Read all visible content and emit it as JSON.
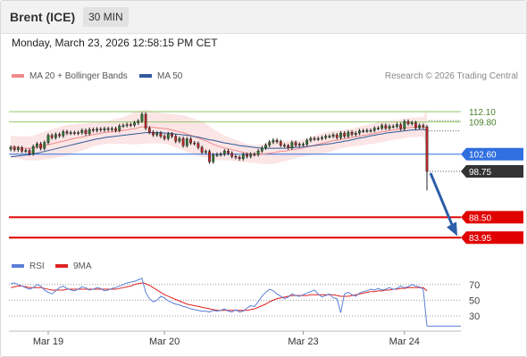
{
  "header": {
    "title": "Brent (ICE)",
    "timeframe": "30 MIN"
  },
  "datetime": "Monday, March 23, 2026 12:58:15 PM CET",
  "legend": {
    "ma20_label": "MA 20 + Bollinger Bands",
    "ma20_color": "#f08a8a",
    "ma50_label": "MA 50",
    "ma50_color": "#2e5a9a"
  },
  "research": "Research © 2026 Trading Central",
  "rsi_legend": {
    "rsi_label": "RSI",
    "rsi_color": "#5a7fd6",
    "ma9_label": "9MA",
    "ma9_color": "#e02020"
  },
  "chart_data": {
    "type": "candlestick",
    "x_labels": [
      "Mar 19",
      "Mar 20",
      "Mar 23",
      "Mar 24"
    ],
    "price_range": [
      80.8,
      117.5
    ],
    "levels": [
      {
        "label": "112.10",
        "value": 112.1,
        "color": "#8fc96a",
        "style": "resistance"
      },
      {
        "label": "109.80",
        "value": 109.8,
        "color": "#8fc96a",
        "style": "resistance"
      },
      {
        "label": "102.60",
        "value": 102.6,
        "color": "#2f6fe0",
        "style": "pivot"
      },
      {
        "label": "98.75",
        "value": 98.75,
        "color": "#333333",
        "style": "last-price"
      },
      {
        "label": "88.50",
        "value": 88.5,
        "color": "#e00000",
        "style": "target"
      },
      {
        "label": "83.95",
        "value": 83.95,
        "color": "#e00000",
        "style": "target"
      }
    ],
    "forecast_arrow": {
      "from": 98.75,
      "to": 84.3,
      "color": "#2d5ea8"
    },
    "price_close": [
      104.1,
      103.6,
      104.0,
      103.3,
      103.4,
      102.7,
      104.3,
      104.9,
      103.9,
      105.2,
      106.8,
      106.3,
      107.0,
      106.7,
      107.6,
      107.3,
      107.4,
      107.3,
      107.4,
      107.9,
      107.2,
      108.1,
      107.9,
      108.2,
      108.0,
      108.3,
      108.1,
      108.3,
      107.9,
      108.9,
      109.0,
      109.2,
      109.1,
      109.6,
      110.0,
      111.5,
      108.4,
      107.5,
      106.9,
      107.3,
      106.6,
      106.1,
      107.1,
      106.6,
      105.5,
      106.1,
      104.5,
      106.0,
      105.1,
      105.0,
      104.1,
      103.0,
      103.2,
      100.9,
      102.4,
      102.5,
      102.6,
      103.3,
      102.8,
      102.1,
      101.9,
      101.6,
      102.5,
      102.1,
      102.6,
      102.5,
      103.3,
      104.0,
      104.6,
      105.3,
      105.7,
      105.4,
      104.6,
      104.5,
      104.0,
      105.2,
      104.6,
      104.8,
      104.8,
      105.7,
      106.1,
      106.0,
      106.1,
      106.3,
      106.6,
      106.6,
      106.9,
      106.3,
      107.3,
      106.6,
      107.5,
      107.0,
      107.3,
      107.8,
      107.8,
      107.9,
      107.9,
      108.4,
      108.4,
      109.0,
      108.4,
      108.8,
      108.8,
      109.2,
      108.3,
      109.9,
      109.4,
      109.6,
      108.5,
      109.0,
      108.7,
      98.75
    ],
    "price_open": [
      103.7,
      104.1,
      103.6,
      104.0,
      103.3,
      103.4,
      102.7,
      104.3,
      104.9,
      103.9,
      105.2,
      106.8,
      106.3,
      107.0,
      106.7,
      107.6,
      107.3,
      107.4,
      107.3,
      107.4,
      107.9,
      107.2,
      108.1,
      107.9,
      108.2,
      108.0,
      108.3,
      108.1,
      108.3,
      107.9,
      108.9,
      109.0,
      109.2,
      109.1,
      109.6,
      110.0,
      111.5,
      108.4,
      107.5,
      106.9,
      107.3,
      106.6,
      106.1,
      107.1,
      106.6,
      105.5,
      106.1,
      104.5,
      106.0,
      105.1,
      105.0,
      104.1,
      103.0,
      103.2,
      100.9,
      102.4,
      102.5,
      102.6,
      103.3,
      102.8,
      102.1,
      101.9,
      101.6,
      102.5,
      102.1,
      102.6,
      102.5,
      103.3,
      104.0,
      104.6,
      105.3,
      105.7,
      105.4,
      104.6,
      104.5,
      104.0,
      105.2,
      104.6,
      104.8,
      104.8,
      105.7,
      106.1,
      106.0,
      106.1,
      106.3,
      106.6,
      106.6,
      106.9,
      106.3,
      107.3,
      106.6,
      107.5,
      107.0,
      107.3,
      107.8,
      107.8,
      107.9,
      107.9,
      108.4,
      108.4,
      109.0,
      108.4,
      108.8,
      108.8,
      109.2,
      108.3,
      109.9,
      109.4,
      109.6,
      108.5,
      109.0,
      108.7
    ],
    "ma20": [
      104.3,
      104.2,
      104.1,
      104.0,
      103.9,
      103.9,
      104.0,
      104.1,
      104.3,
      104.5,
      104.7,
      104.9,
      105.1,
      105.3,
      105.5,
      105.7,
      105.9,
      106.1,
      106.3,
      106.4,
      106.6,
      106.8,
      107.0,
      107.1,
      107.3,
      107.4,
      107.5,
      107.6,
      107.7,
      107.8,
      107.9,
      108.0,
      108.2,
      108.3,
      108.5,
      108.7,
      108.7,
      108.7,
      108.6,
      108.5,
      108.4,
      108.3,
      108.2,
      108.0,
      107.8,
      107.6,
      107.4,
      107.1,
      106.8,
      106.5,
      106.2,
      105.9,
      105.6,
      105.2,
      104.8,
      104.5,
      104.2,
      104.0,
      103.8,
      103.6,
      103.4,
      103.2,
      103.0,
      102.8,
      102.7,
      102.6,
      102.6,
      102.6,
      102.7,
      102.8,
      102.9,
      103.1,
      103.2,
      103.3,
      103.4,
      103.6,
      103.7,
      103.8,
      104.0,
      104.2,
      104.4,
      104.6,
      104.8,
      105.0,
      105.2,
      105.4,
      105.6,
      105.7,
      105.9,
      106.0,
      106.2,
      106.3,
      106.5,
      106.6,
      106.8,
      106.9,
      107.1,
      107.2,
      107.4,
      107.6,
      107.7,
      107.9,
      108.0,
      108.1,
      108.2,
      108.4,
      108.5,
      108.6,
      108.6,
      108.7,
      108.7,
      108.3
    ],
    "ma50": [
      102.0,
      102.1,
      102.2,
      102.3,
      102.4,
      102.5,
      102.7,
      102.8,
      103.0,
      103.2,
      103.4,
      103.6,
      103.8,
      104.0,
      104.2,
      104.4,
      104.6,
      104.8,
      105.0,
      105.2,
      105.4,
      105.6,
      105.8,
      106.0,
      106.1,
      106.3,
      106.4,
      106.5,
      106.6,
      106.7,
      106.8,
      106.9,
      107.0,
      107.1,
      107.2,
      107.3,
      107.4,
      107.4,
      107.4,
      107.4,
      107.4,
      107.3,
      107.3,
      107.2,
      107.1,
      107.0,
      106.9,
      106.8,
      106.7,
      106.5,
      106.4,
      106.2,
      106.0,
      105.8,
      105.7,
      105.5,
      105.3,
      105.1,
      105.0,
      104.8,
      104.7,
      104.5,
      104.4,
      104.3,
      104.2,
      104.1,
      104.0,
      103.9,
      103.9,
      103.9,
      103.9,
      103.9,
      103.9,
      103.9,
      104.0,
      104.0,
      104.1,
      104.1,
      104.2,
      104.3,
      104.4,
      104.5,
      104.6,
      104.7,
      104.8,
      104.9,
      105.0,
      105.2,
      105.3,
      105.5,
      105.6,
      105.8,
      106.0,
      106.2,
      106.3,
      106.5,
      106.7,
      106.8,
      107.0,
      107.1,
      107.3,
      107.4,
      107.5,
      107.6,
      107.7,
      107.8,
      107.9,
      108.0,
      108.0,
      108.1,
      108.1,
      107.9
    ],
    "bb_width": [
      2.4,
      2.4,
      2.5,
      2.6,
      2.6,
      2.7,
      2.8,
      2.9,
      3.0,
      3.1,
      3.2,
      3.3,
      3.3,
      3.4,
      3.4,
      3.4,
      3.3,
      3.2,
      3.1,
      3.0,
      2.9,
      2.8,
      2.7,
      2.6,
      2.6,
      2.6,
      2.6,
      2.7,
      2.8,
      2.9,
      3.0,
      3.2,
      3.4,
      3.6,
      3.7,
      3.8,
      3.8,
      3.7,
      3.6,
      3.5,
      3.4,
      3.4,
      3.5,
      3.6,
      3.7,
      3.8,
      3.9,
      4.0,
      4.0,
      4.0,
      4.0,
      3.9,
      3.8,
      3.6,
      3.4,
      3.2,
      3.0,
      2.8,
      2.6,
      2.5,
      2.4,
      2.3,
      2.2,
      2.1,
      2.0,
      2.0,
      2.1,
      2.2,
      2.3,
      2.4,
      2.5,
      2.5,
      2.4,
      2.3,
      2.2,
      2.1,
      2.0,
      1.9,
      1.9,
      1.9,
      2.0,
      2.1,
      2.2,
      2.3,
      2.3,
      2.3,
      2.2,
      2.1,
      2.0,
      2.0,
      2.0,
      2.0,
      2.1,
      2.1,
      2.2,
      2.2,
      2.2,
      2.3,
      2.3,
      2.3,
      2.3,
      2.2,
      2.2,
      2.2,
      2.2,
      2.2,
      2.2,
      2.2,
      2.2,
      2.2,
      2.2,
      4.5
    ],
    "rsi_levels": [
      70,
      50,
      30
    ],
    "rsi_range": [
      14,
      80
    ],
    "rsi": [
      71,
      72,
      70,
      68,
      66,
      64,
      66,
      70,
      68,
      63,
      60,
      58,
      62,
      66,
      68,
      65,
      63,
      62,
      64,
      67,
      66,
      63,
      64,
      66,
      65,
      62,
      63,
      65,
      66,
      68,
      70,
      72,
      73,
      74,
      76,
      78,
      60,
      52,
      48,
      50,
      55,
      53,
      49,
      47,
      45,
      44,
      42,
      41,
      39,
      38,
      37,
      36,
      36,
      35,
      37,
      36,
      37,
      39,
      36,
      35,
      38,
      35,
      36,
      40,
      43,
      42,
      48,
      55,
      60,
      64,
      62,
      58,
      55,
      52,
      54,
      58,
      56,
      55,
      57,
      59,
      61,
      63,
      58,
      54,
      56,
      58,
      53,
      52,
      34,
      58,
      60,
      57,
      55,
      59,
      61,
      62,
      64,
      63,
      65,
      63,
      64,
      66,
      64,
      65,
      68,
      66,
      67,
      70,
      68,
      67,
      64,
      17
    ],
    "rsi_ma9": [
      66,
      67,
      68,
      68,
      67,
      66,
      66,
      66,
      66,
      65,
      64,
      63,
      63,
      63,
      63,
      64,
      64,
      64,
      64,
      64,
      64,
      64,
      64,
      64,
      64,
      64,
      64,
      64,
      64,
      65,
      66,
      67,
      68,
      70,
      71,
      72,
      71,
      69,
      66,
      63,
      60,
      57,
      55,
      53,
      51,
      49,
      47,
      45,
      44,
      43,
      42,
      41,
      40,
      39,
      38,
      37,
      37,
      37,
      37,
      37,
      37,
      37,
      37,
      37,
      38,
      39,
      41,
      43,
      45,
      48,
      50,
      52,
      53,
      54,
      55,
      56,
      56,
      56,
      56,
      56,
      57,
      57,
      57,
      57,
      57,
      57,
      57,
      56,
      55,
      55,
      55,
      56,
      57,
      58,
      59,
      60,
      61,
      61,
      62,
      62,
      63,
      63,
      64,
      64,
      65,
      65,
      66,
      66,
      66,
      66,
      66,
      62
    ],
    "x_axis_marks": [
      {
        "label": "Mar 19",
        "index": 10
      },
      {
        "label": "Mar 20",
        "index": 41
      },
      {
        "label": "Mar 23",
        "index": 78
      },
      {
        "label": "Mar 24",
        "index": 105
      }
    ]
  }
}
